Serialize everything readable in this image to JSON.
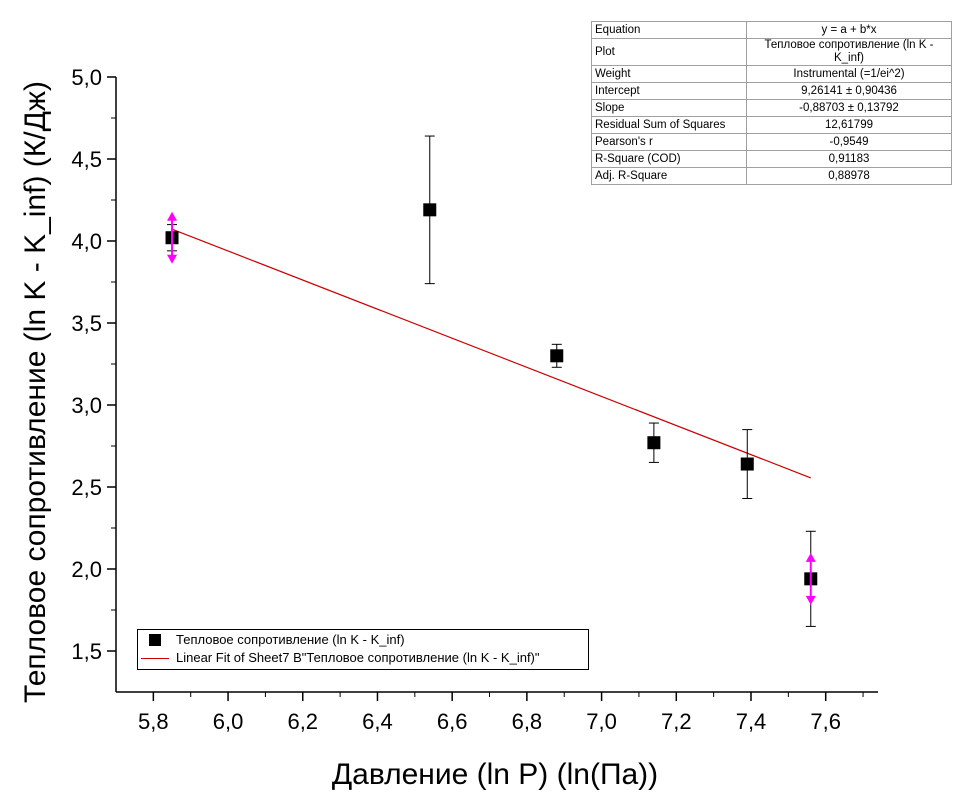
{
  "chart_data": {
    "type": "scatter",
    "xlabel": "Давление (ln P) (ln(Па))",
    "ylabel": "Тепловое сопротивление (ln K - K_inf) (К/Дж)",
    "xlim": [
      5.7,
      7.74
    ],
    "ylim": [
      1.25,
      5.0
    ],
    "x_ticks": [
      5.8,
      6.0,
      6.2,
      6.4,
      6.6,
      6.8,
      7.0,
      7.2,
      7.4,
      7.6
    ],
    "x_tick_labels": [
      "5,8",
      "6,0",
      "6,2",
      "6,4",
      "6,6",
      "6,8",
      "7,0",
      "7,2",
      "7,4",
      "7,6"
    ],
    "y_ticks": [
      1.5,
      2.0,
      2.5,
      3.0,
      3.5,
      4.0,
      4.5,
      5.0
    ],
    "y_tick_labels": [
      "1,5",
      "2,0",
      "2,5",
      "3,0",
      "3,5",
      "4,0",
      "4,5",
      "5,0"
    ],
    "series": [
      {
        "name": "Тепловое сопротивление (ln K - K_inf)",
        "color": "#000000",
        "marker": "square",
        "x": [
          5.85,
          6.54,
          6.88,
          7.14,
          7.39,
          7.56
        ],
        "y": [
          4.02,
          4.19,
          3.3,
          2.77,
          2.64,
          1.94
        ],
        "err": [
          0.08,
          0.45,
          0.07,
          0.12,
          0.21,
          0.29
        ],
        "highlighted_points": [
          0,
          5
        ],
        "highlight_color": "#ff00ff"
      },
      {
        "name": "Linear Fit of Sheet7 B\"Тепловое сопротивление (ln K - K_inf)\"",
        "color": "#cc0000",
        "type": "line",
        "intercept": 9.26141,
        "slope": -0.88703,
        "x_range": [
          5.85,
          7.56
        ]
      }
    ],
    "legend_position": "bottom-left"
  },
  "fit_table": [
    {
      "key": "Equation",
      "value": "y = a + b*x"
    },
    {
      "key": "Plot",
      "value": "Тепловое сопротивление (ln K - K_inf)"
    },
    {
      "key": "Weight",
      "value": "Instrumental (=1/ei^2)"
    },
    {
      "key": "Intercept",
      "value": "9,26141 ± 0,90436"
    },
    {
      "key": "Slope",
      "value": "-0,88703 ± 0,13792"
    },
    {
      "key": "Residual Sum of Squares",
      "value": "12,61799"
    },
    {
      "key": "Pearson's r",
      "value": "-0,9549"
    },
    {
      "key": "R-Square (COD)",
      "value": "0,91183"
    },
    {
      "key": "Adj. R-Square",
      "value": "0,88978"
    }
  ],
  "legend": {
    "series1_label": "Тепловое сопротивление (ln K - K_inf)",
    "fit_label": "Linear Fit of Sheet7 B\"Тепловое сопротивление (ln K - K_inf)\""
  }
}
